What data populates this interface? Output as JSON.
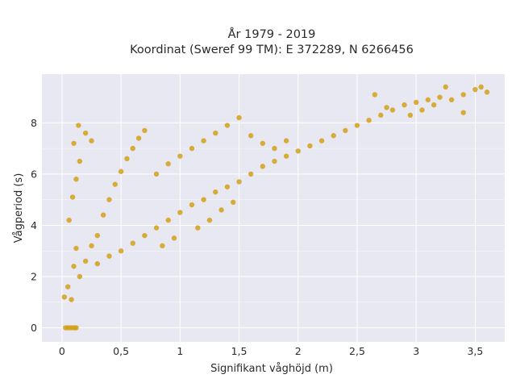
{
  "chart_data": {
    "type": "scatter",
    "title": "År 1979 - 2019",
    "subtitle": "Koordinat (Sweref 99 TM): E 372289, N 6266456",
    "xlabel": "Signifikant våghöjd (m)",
    "ylabel": "Vågperiod (s)",
    "xlim": [
      -0.17,
      3.75
    ],
    "ylim": [
      -0.55,
      9.9
    ],
    "x_ticks": [
      0,
      0.5,
      1,
      1.5,
      2,
      2.5,
      3,
      3.5
    ],
    "x_tick_labels": [
      "0",
      "0,5",
      "1",
      "1,5",
      "2",
      "2,5",
      "3",
      "3,5"
    ],
    "y_ticks": [
      0,
      2,
      4,
      6,
      8
    ],
    "y_tick_labels": [
      "0",
      "2",
      "4",
      "6",
      "8"
    ],
    "grid": true,
    "colors": {
      "marker": "#D4A017",
      "plot_bg": "#E8E8F2",
      "grid": "#FFFFFF"
    },
    "series": [
      {
        "points": [
          [
            0.03,
            0
          ],
          [
            0.05,
            0
          ],
          [
            0.07,
            0
          ],
          [
            0.09,
            0
          ],
          [
            0.11,
            0
          ],
          [
            0.12,
            0
          ],
          [
            0.02,
            1.2
          ],
          [
            0.05,
            1.6
          ],
          [
            0.08,
            1.1
          ],
          [
            0.1,
            2.4
          ],
          [
            0.12,
            3.1
          ],
          [
            0.06,
            4.2
          ],
          [
            0.09,
            5.1
          ],
          [
            0.12,
            5.8
          ],
          [
            0.15,
            6.5
          ],
          [
            0.1,
            7.2
          ],
          [
            0.14,
            7.9
          ],
          [
            0.2,
            7.6
          ],
          [
            0.25,
            7.3
          ],
          [
            0.15,
            2.0
          ],
          [
            0.2,
            2.6
          ],
          [
            0.25,
            3.2
          ],
          [
            0.3,
            3.6
          ],
          [
            0.35,
            4.4
          ],
          [
            0.4,
            5.0
          ],
          [
            0.45,
            5.6
          ],
          [
            0.5,
            6.1
          ],
          [
            0.55,
            6.6
          ],
          [
            0.6,
            7.0
          ],
          [
            0.65,
            7.4
          ],
          [
            0.7,
            7.7
          ],
          [
            0.3,
            2.5
          ],
          [
            0.4,
            2.8
          ],
          [
            0.5,
            3.0
          ],
          [
            0.6,
            3.3
          ],
          [
            0.7,
            3.6
          ],
          [
            0.8,
            3.9
          ],
          [
            0.9,
            4.2
          ],
          [
            1.0,
            4.5
          ],
          [
            1.1,
            4.8
          ],
          [
            1.2,
            5.0
          ],
          [
            1.3,
            5.3
          ],
          [
            1.4,
            5.5
          ],
          [
            1.5,
            5.7
          ],
          [
            0.8,
            6.0
          ],
          [
            0.9,
            6.4
          ],
          [
            1.0,
            6.7
          ],
          [
            1.1,
            7.0
          ],
          [
            1.2,
            7.3
          ],
          [
            1.3,
            7.6
          ],
          [
            1.4,
            7.9
          ],
          [
            1.5,
            8.2
          ],
          [
            1.6,
            7.5
          ],
          [
            1.7,
            7.2
          ],
          [
            1.8,
            7.0
          ],
          [
            1.9,
            7.3
          ],
          [
            1.6,
            6.0
          ],
          [
            1.7,
            6.3
          ],
          [
            1.8,
            6.5
          ],
          [
            1.9,
            6.7
          ],
          [
            2.0,
            6.9
          ],
          [
            2.1,
            7.1
          ],
          [
            2.2,
            7.3
          ],
          [
            2.3,
            7.5
          ],
          [
            2.4,
            7.7
          ],
          [
            2.5,
            7.9
          ],
          [
            2.6,
            8.1
          ],
          [
            2.7,
            8.3
          ],
          [
            2.8,
            8.5
          ],
          [
            2.9,
            8.7
          ],
          [
            3.0,
            8.8
          ],
          [
            3.1,
            8.9
          ],
          [
            3.2,
            9.0
          ],
          [
            3.3,
            8.9
          ],
          [
            3.4,
            9.1
          ],
          [
            3.5,
            9.3
          ],
          [
            3.6,
            9.2
          ],
          [
            3.25,
            9.4
          ],
          [
            3.55,
            9.4
          ],
          [
            2.65,
            9.1
          ],
          [
            2.75,
            8.6
          ],
          [
            2.95,
            8.3
          ],
          [
            3.05,
            8.5
          ],
          [
            3.15,
            8.7
          ],
          [
            3.4,
            8.4
          ],
          [
            0.85,
            3.2
          ],
          [
            0.95,
            3.5
          ],
          [
            1.15,
            3.9
          ],
          [
            1.25,
            4.2
          ],
          [
            1.35,
            4.6
          ],
          [
            1.45,
            4.9
          ]
        ]
      }
    ]
  }
}
